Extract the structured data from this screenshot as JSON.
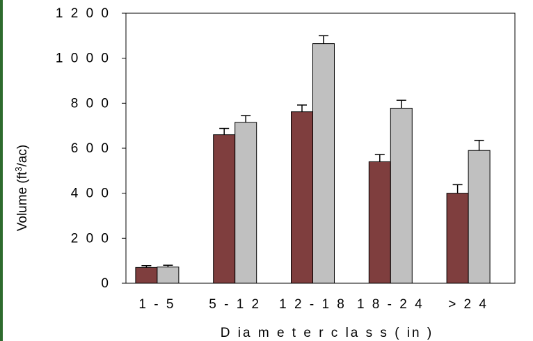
{
  "chart_data": {
    "type": "bar",
    "categories": [
      "1 - 5",
      "5 - 1 2",
      "1 2 - 1 8",
      "1 8 - 2 4",
      "> 2 4"
    ],
    "series": [
      {
        "values": [
          70,
          660,
          762,
          540,
          400
        ],
        "errors": [
          8,
          28,
          30,
          32,
          38
        ],
        "color": "#7f3e3e"
      },
      {
        "values": [
          72,
          715,
          1065,
          778,
          590
        ],
        "errors": [
          8,
          30,
          35,
          35,
          45
        ],
        "color": "#c0c0c0"
      }
    ],
    "ylim": [
      0,
      1200
    ],
    "yticks": [
      0,
      200,
      400,
      600,
      800,
      1000,
      1200
    ],
    "ytick_labels": [
      "0",
      "2 0 0",
      "4 0 0",
      "6 0 0",
      "8 0 0",
      "1 0 0 0",
      "1 2 0 0"
    ],
    "ylabel_main": "Volume (ft",
    "ylabel_sup": "3",
    "ylabel_end": "/ac)",
    "xlabel": "D ia m e t e r  c la s s  ( in )",
    "grid": false
  }
}
